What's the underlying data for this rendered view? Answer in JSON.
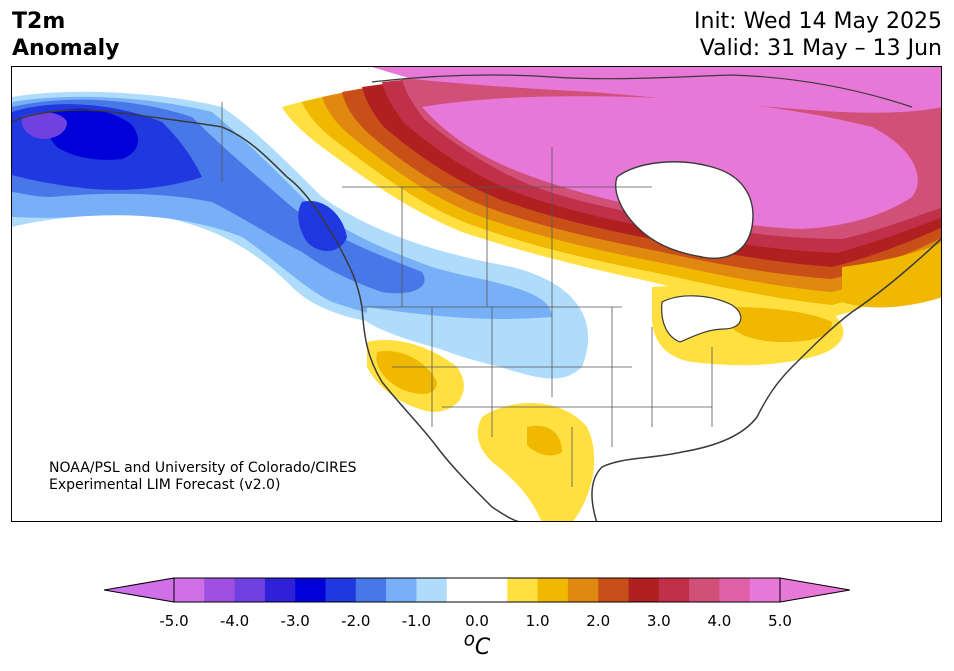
{
  "title": {
    "line1": "T2m",
    "line2": "Anomaly"
  },
  "init": "Init: Wed 14 May 2025",
  "valid": "Valid: 31 May – 13 Jun",
  "credit": {
    "line1": "NOAA/PSL and University of Colorado/CIRES",
    "line2": "Experimental LIM Forecast (v2.0)"
  },
  "colorbar": {
    "min": -5.0,
    "max": 5.0,
    "step": 0.5,
    "colors": [
      "#d070e8",
      "#a050e0",
      "#7040e0",
      "#3020d8",
      "#0000d8",
      "#2038e0",
      "#4878e8",
      "#78b0f8",
      "#b0dcfc",
      "#ffffff",
      "#ffffff",
      "#ffe040",
      "#f0b800",
      "#e08810",
      "#c85018",
      "#b02020",
      "#c03048",
      "#d05078",
      "#e060a8",
      "#e878d8"
    ],
    "extend_min_color": "#d070e8",
    "extend_max_color": "#e878d8",
    "tick_labels": [
      "-5.0",
      "-4.0",
      "-3.0",
      "-2.0",
      "-1.0",
      "0.0",
      "1.0",
      "2.0",
      "3.0",
      "4.0",
      "5.0"
    ],
    "unit_base": "o",
    "unit_main": "C"
  }
}
